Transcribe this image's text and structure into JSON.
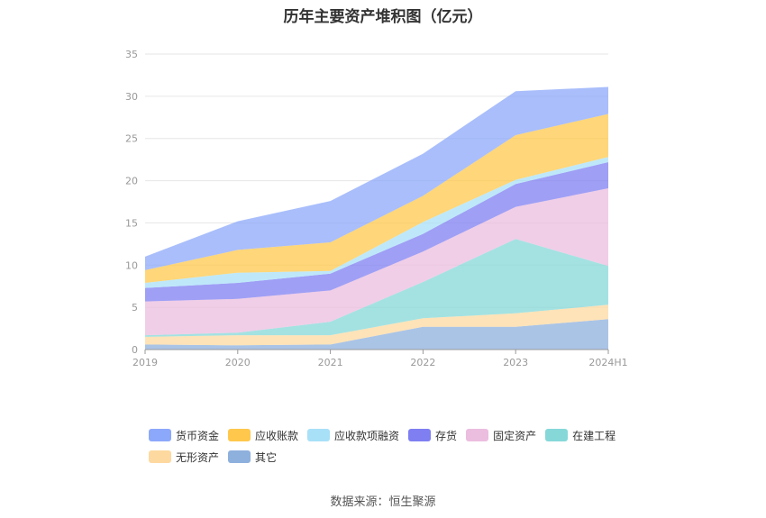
{
  "chart_data": {
    "type": "area",
    "stacked": true,
    "title": "历年主要资产堆积图（亿元）",
    "source": "数据来源：恒生聚源",
    "x": [
      "2019",
      "2020",
      "2021",
      "2022",
      "2023",
      "2024H1"
    ],
    "ylim": [
      0,
      35
    ],
    "yticks": [
      "0",
      "5",
      "10",
      "15",
      "20",
      "25",
      "30",
      "35"
    ],
    "grid": true,
    "legend_position": "bottom",
    "series": [
      {
        "name": "其它",
        "color": "#8eb0dd",
        "values": [
          0.6,
          0.5,
          0.6,
          2.7,
          2.7,
          3.6
        ]
      },
      {
        "name": "无形资产",
        "color": "#fdd9a0",
        "values": [
          0.9,
          1.2,
          1.1,
          1.0,
          1.6,
          1.7
        ]
      },
      {
        "name": "在建工程",
        "color": "#86d8d8",
        "values": [
          0.2,
          0.3,
          1.6,
          4.3,
          8.8,
          4.6
        ]
      },
      {
        "name": "固定资产",
        "color": "#ebbddf",
        "values": [
          4.0,
          4.0,
          3.7,
          3.6,
          3.8,
          9.2
        ]
      },
      {
        "name": "存货",
        "color": "#7f7ff2",
        "values": [
          1.6,
          1.9,
          2.0,
          2.1,
          2.7,
          3.1
        ]
      },
      {
        "name": "应收款项融资",
        "color": "#a8e0f8",
        "values": [
          0.6,
          1.2,
          0.3,
          1.4,
          0.5,
          0.6
        ]
      },
      {
        "name": "应收账款",
        "color": "#ffc84c",
        "values": [
          1.5,
          2.7,
          3.4,
          3.1,
          5.3,
          5.1
        ]
      },
      {
        "name": "货币资金",
        "color": "#8ca8fa",
        "values": [
          1.6,
          3.4,
          4.9,
          5.0,
          5.2,
          3.2
        ]
      }
    ],
    "legend_order": [
      "货币资金",
      "应收账款",
      "应收款项融资",
      "存货",
      "固定资产",
      "在建工程",
      "无形资产",
      "其它"
    ]
  }
}
